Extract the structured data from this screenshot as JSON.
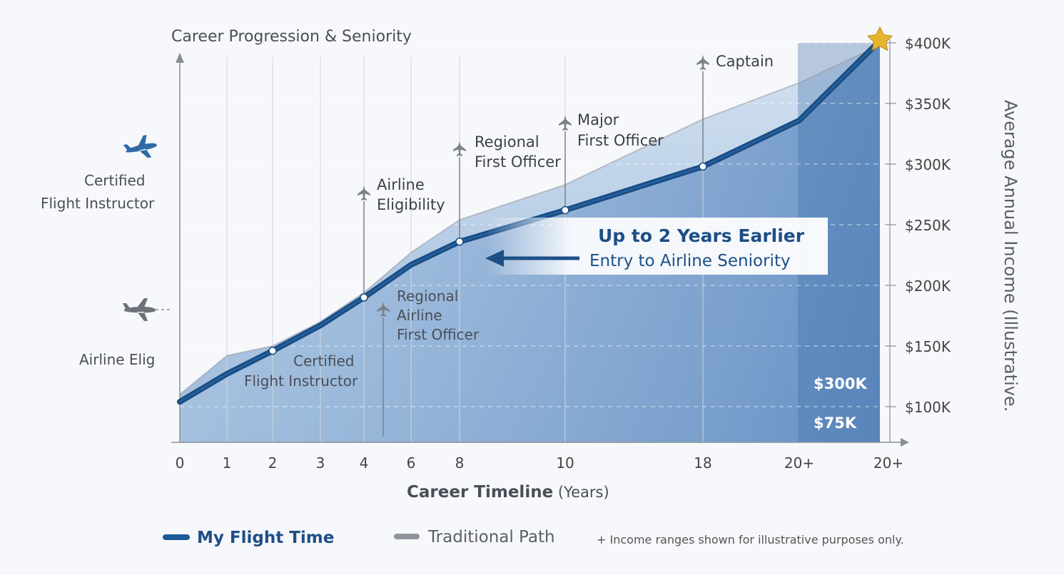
{
  "chart_data": {
    "type": "area",
    "title": "Career Progression & Seniority",
    "xlabel_bold": "Career Timeline",
    "xlabel_rest": " (Years)",
    "ylabel": "Average Annual Income (Illustrative.",
    "x_ticks": [
      "0",
      "1",
      "2",
      "3",
      "4",
      "6",
      "8",
      "10",
      "18",
      "20+",
      "20+"
    ],
    "y_ticks": [
      "$100K",
      "$150K",
      "$200K",
      "$250K",
      "$300K",
      "$350K",
      "$400K"
    ],
    "series": [
      {
        "name": "My Flight Time",
        "color": "#1d5a98",
        "points": [
          {
            "x": "0",
            "y": 104
          },
          {
            "x": "1",
            "y": 127
          },
          {
            "x": "2",
            "y": 146
          },
          {
            "x": "3",
            "y": 167
          },
          {
            "x": "4",
            "y": 190
          },
          {
            "x": "6",
            "y": 217
          },
          {
            "x": "8",
            "y": 236
          },
          {
            "x": "10",
            "y": 262
          },
          {
            "x": "18",
            "y": 298
          },
          {
            "x": "20+",
            "y": 336
          },
          {
            "x": "20+",
            "y": 397
          }
        ]
      },
      {
        "name": "Traditional Path",
        "color": "#8f949c",
        "points": [
          {
            "x": "0",
            "y": 110
          },
          {
            "x": "1",
            "y": 142
          },
          {
            "x": "2",
            "y": 150
          },
          {
            "x": "3",
            "y": 170
          },
          {
            "x": "4",
            "y": 194
          },
          {
            "x": "6",
            "y": 227
          },
          {
            "x": "8",
            "y": 254
          },
          {
            "x": "10",
            "y": 283
          },
          {
            "x": "18",
            "y": 337
          },
          {
            "x": "20+",
            "y": 367
          },
          {
            "x": "20+",
            "y": 393
          }
        ]
      }
    ],
    "milestones": [
      {
        "x": "4",
        "lines": [
          "Airline",
          "Eligibility"
        ]
      },
      {
        "x": "8",
        "lines": [
          "Regional",
          "First Officer"
        ]
      },
      {
        "x": "10",
        "lines": [
          "Major",
          "First Officer"
        ]
      },
      {
        "x": "18",
        "lines": [
          "Captain"
        ]
      },
      {
        "x": "2",
        "lines": [
          "Certified",
          "Flight Instructor"
        ]
      },
      {
        "x": "6",
        "lines": [
          "Regional",
          "Airline",
          "First Officer"
        ]
      }
    ],
    "annotation": {
      "line1": "Up to 2 Years Earlier",
      "line2": "Entry to Airline Seniority"
    },
    "left_labels": {
      "cfi": [
        "Certified",
        "Flight Instructor"
      ],
      "elig": "Airline Elig"
    },
    "band_labels": [
      "$300K",
      "$75K"
    ],
    "ylim": [
      40,
      410
    ],
    "grid": true,
    "legend_position": "bottom-left"
  },
  "legend": {
    "items": [
      {
        "label": "My Flight Time",
        "color": "#1d5a98"
      },
      {
        "label": "Traditional Path",
        "color": "#8f949c"
      }
    ],
    "note": "+ Income ranges shown for illustrative purposes only."
  }
}
